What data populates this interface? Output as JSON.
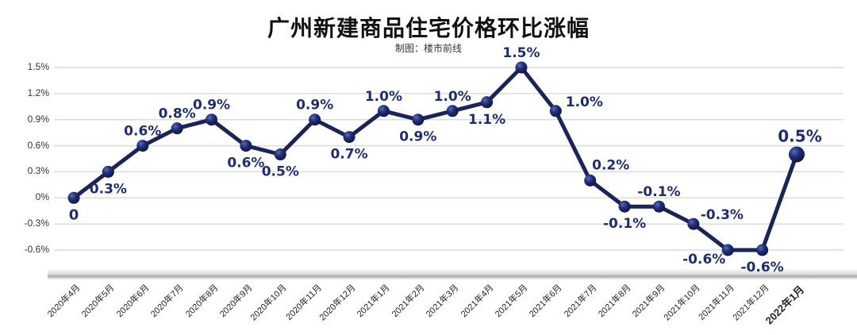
{
  "title": "广州新建商品住宅价格环比涨幅",
  "subtitle": "制图：楼市前线",
  "colors": {
    "line": "#1a2456",
    "marker": "#22307a",
    "label": "#1f2d6b",
    "grid": "#dcdcdc"
  },
  "chart_data": {
    "type": "line",
    "title": "广州新建商品住宅价格环比涨幅",
    "subtitle": "制图：楼市前线",
    "xlabel": "",
    "ylabel": "",
    "ylim": [
      -0.6,
      1.5
    ],
    "yticks": [
      "1.5%",
      "1.2%",
      "0.9%",
      "0.6%",
      "0.3%",
      "0%",
      "-0.3%",
      "-0.6%"
    ],
    "grid": true,
    "legend": null,
    "categories": [
      "2020年4月",
      "2020年5月",
      "2020年6月",
      "2020年7月",
      "2020年8月",
      "2020年9月",
      "2020年10月",
      "2020年11月",
      "2020年12月",
      "2021年1月",
      "2021年2月",
      "2021年3月",
      "2021年4月",
      "2021年5月",
      "2021年6月",
      "2021年7月",
      "2021年8月",
      "2021年9月",
      "2021年10月",
      "2021年11月",
      "2021年12月",
      "2022年1月"
    ],
    "series": [
      {
        "name": "环比涨幅",
        "values": [
          0,
          0.3,
          0.6,
          0.8,
          0.9,
          0.6,
          0.5,
          0.9,
          0.7,
          1.0,
          0.9,
          1.0,
          1.1,
          1.5,
          1.0,
          0.2,
          -0.1,
          -0.1,
          -0.3,
          -0.6,
          -0.6,
          0.5
        ],
        "labels": [
          "0",
          "0.3%",
          "0.6%",
          "0.8%",
          "0.9%",
          "0.6%",
          "0.5%",
          "0.9%",
          "0.7%",
          "1.0%",
          "0.9%",
          "1.0%",
          "1.1%",
          "1.5%",
          "1.0%",
          "0.2%",
          "-0.1%",
          "-0.1%",
          "-0.3%",
          "-0.6%",
          "-0.6%",
          "0.5%"
        ],
        "label_position": [
          "below",
          "below",
          "above",
          "above",
          "above",
          "below",
          "below",
          "above",
          "below",
          "above",
          "below",
          "above",
          "below",
          "above",
          "right",
          "above-right",
          "below",
          "above",
          "right",
          "below-left",
          "below",
          "above"
        ]
      }
    ]
  }
}
